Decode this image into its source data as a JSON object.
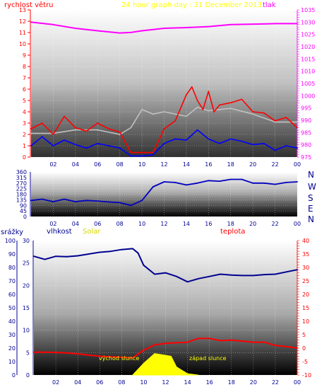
{
  "chart_data": [
    {
      "type": "line",
      "title": "24 hour graph day : 31 December 2013",
      "left_axis_label": "rychlost větru",
      "right_axis_label": "tlak",
      "x_ticks": [
        "02",
        "04",
        "06",
        "08",
        "10",
        "12",
        "14",
        "16",
        "18",
        "20",
        "22",
        "00"
      ],
      "ylim_left": [
        0,
        13
      ],
      "yticks_left": [
        0,
        1,
        2,
        3,
        4,
        5,
        6,
        7,
        8,
        9,
        10,
        11,
        12,
        13
      ],
      "ylim_right": [
        975,
        1035
      ],
      "yticks_right": [
        975,
        980,
        985,
        990,
        995,
        1000,
        1005,
        1010,
        1015,
        1020,
        1025,
        1030,
        1035
      ],
      "series": [
        {
          "color": "#ff00ff",
          "axis": "right",
          "x": [
            0,
            2,
            4,
            6,
            8,
            9,
            10,
            12,
            14,
            16,
            18,
            20,
            22,
            24
          ],
          "values": [
            1030,
            1029,
            1027.5,
            1026.5,
            1025.6,
            1025.8,
            1026.5,
            1027.5,
            1027.8,
            1028.2,
            1029,
            1029.2,
            1029.4,
            1029.4
          ]
        },
        {
          "color": "#c0c0c0",
          "axis": "left",
          "x": [
            0,
            2,
            4,
            6,
            8,
            9,
            10,
            11,
            12,
            14,
            15,
            16,
            18,
            20,
            22,
            24
          ],
          "values": [
            2.1,
            2.1,
            2.4,
            2.4,
            2.0,
            2.6,
            4.2,
            3.8,
            4.0,
            3.6,
            4.4,
            4.1,
            4.3,
            3.8,
            3.1,
            3.1
          ]
        },
        {
          "color": "#ff0000",
          "axis": "left",
          "x": [
            0,
            1,
            2,
            3,
            4,
            5,
            6,
            7,
            8,
            9,
            10,
            11,
            12,
            13,
            14,
            14.5,
            15,
            15.5,
            16,
            16.5,
            17,
            18,
            19,
            20,
            21,
            22,
            23,
            24
          ],
          "values": [
            2.5,
            3.0,
            2.0,
            3.6,
            2.6,
            2.3,
            3.0,
            2.5,
            2.2,
            0.4,
            0.4,
            0.4,
            2.5,
            3.2,
            5.5,
            6.2,
            5.0,
            4.2,
            5.8,
            4.0,
            4.6,
            4.8,
            5.1,
            4.0,
            3.9,
            3.2,
            3.5,
            2.6
          ]
        },
        {
          "color": "#0000ff",
          "axis": "left",
          "x": [
            0,
            1,
            2,
            3,
            4,
            5,
            6,
            7,
            8,
            9,
            10,
            11,
            12,
            13,
            14,
            15,
            16,
            17,
            18,
            19,
            20,
            21,
            22,
            23,
            24
          ],
          "values": [
            1.0,
            1.8,
            1.0,
            1.5,
            1.1,
            0.8,
            1.2,
            1.0,
            0.8,
            0.1,
            0.1,
            0.2,
            1.2,
            1.6,
            1.5,
            2.4,
            1.6,
            1.2,
            1.6,
            1.4,
            1.1,
            1.2,
            0.6,
            1.0,
            0.8
          ]
        }
      ]
    },
    {
      "type": "line",
      "x_ticks": [
        "02",
        "04",
        "06",
        "08",
        "10",
        "12",
        "14",
        "16",
        "18",
        "20",
        "22",
        "00"
      ],
      "ylim": [
        0,
        360
      ],
      "yticks": [
        0,
        45,
        90,
        135,
        180,
        225,
        270,
        315,
        360
      ],
      "direction_labels": [
        "N",
        "W",
        "S",
        "E",
        "N"
      ],
      "series": [
        {
          "color": "#0000c0",
          "x": [
            0,
            1,
            2,
            3,
            4,
            5,
            6,
            7,
            8,
            9,
            10,
            11,
            12,
            13,
            14,
            15,
            16,
            17,
            18,
            19,
            20,
            21,
            22,
            23,
            24
          ],
          "values": [
            130,
            140,
            120,
            140,
            120,
            130,
            125,
            118,
            112,
            90,
            130,
            240,
            280,
            275,
            255,
            270,
            290,
            285,
            300,
            300,
            270,
            270,
            260,
            275,
            280
          ]
        }
      ]
    },
    {
      "type": "line",
      "labels": [
        "srážky",
        "vlhkost",
        "Solar",
        "teplota"
      ],
      "annotations": [
        "východ slunce",
        "západ slunce"
      ],
      "x_ticks": [
        "02",
        "04",
        "06",
        "08",
        "10",
        "12",
        "14",
        "16",
        "18",
        "20",
        "22",
        "00"
      ],
      "yticks_left_1": [
        0,
        10,
        20,
        30,
        40,
        50,
        60,
        70,
        80,
        90,
        100
      ],
      "yticks_left_2": [
        0,
        5,
        10,
        15,
        20,
        25,
        30
      ],
      "ylim_left_2": [
        0,
        30
      ],
      "ylim_right": [
        -10,
        40
      ],
      "yticks_right": [
        -10,
        -5,
        0,
        5,
        10,
        15,
        20,
        25,
        30,
        35,
        40
      ],
      "series": [
        {
          "color": "#000090",
          "axis": "left_2",
          "x": [
            0,
            1,
            2,
            3,
            4,
            5,
            6,
            7,
            8,
            9,
            9.5,
            10,
            11,
            12,
            13,
            14,
            15,
            16,
            17,
            18,
            19,
            20,
            21,
            22,
            23,
            24
          ],
          "values": [
            26.5,
            25.8,
            26.5,
            26.4,
            26.6,
            27,
            27.4,
            27.6,
            28,
            28.2,
            27.2,
            24.5,
            22.5,
            22.8,
            22,
            20.8,
            21.5,
            22,
            22.5,
            22.3,
            22.2,
            22.2,
            22.4,
            22.5,
            23,
            23.5
          ]
        },
        {
          "color": "#ff0000",
          "axis": "right",
          "x": [
            0,
            1,
            2,
            3,
            4,
            5,
            6,
            7,
            8,
            9,
            10,
            11,
            12,
            13,
            14,
            15,
            16,
            17,
            18,
            19,
            20,
            21,
            22,
            23,
            24
          ],
          "values": [
            -1.5,
            -1.5,
            -1.6,
            -1.8,
            -2.1,
            -2.6,
            -3.0,
            -3.2,
            -3.4,
            -3.6,
            -0.8,
            1.2,
            1.8,
            2.0,
            2.2,
            3.6,
            3.6,
            2.8,
            3.0,
            2.6,
            2.2,
            2.2,
            1.0,
            0.6,
            0.0
          ]
        },
        {
          "color": "#ffff00",
          "axis": "left_2",
          "kind": "area",
          "x": [
            9,
            10,
            11,
            12,
            12.5,
            13,
            14,
            15
          ],
          "values": [
            0,
            2.6,
            4.8,
            4.4,
            4.2,
            1.8,
            0.3,
            0
          ]
        }
      ]
    }
  ]
}
